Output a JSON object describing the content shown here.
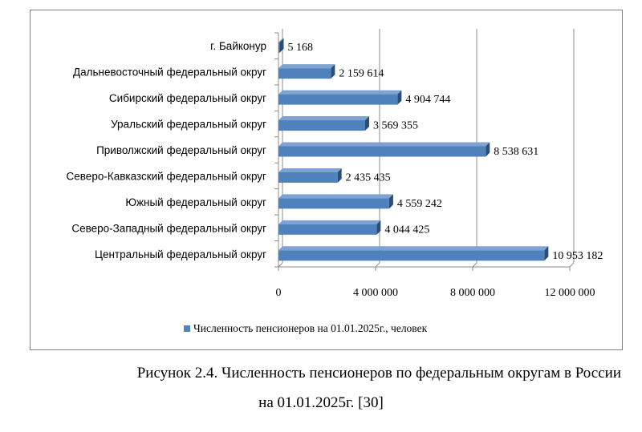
{
  "chart_data": {
    "type": "bar",
    "orientation": "horizontal",
    "categories": [
      "г. Байконур",
      "Дальневосточный федеральный округ",
      "Сибирский федеральный округ",
      "Уральский федеральный округ",
      "Приволжский федеральный округ",
      "Северо-Кавказский федеральный округ",
      "Южный федеральный округ",
      "Северо-Западный федеральный округ",
      "Центральный федеральный округ"
    ],
    "series": [
      {
        "name": "Численность пенсионеров на 01.01.2025г., человек",
        "values": [
          5168,
          2159614,
          4904744,
          3569355,
          8538631,
          2435435,
          4559242,
          4044425,
          10953182
        ],
        "value_labels": [
          "5 168",
          "2 159 614",
          "4 904 744",
          "3 569 355",
          "8 538 631",
          "2 435 435",
          "4 559 242",
          "4 044 425",
          "10 953 182"
        ]
      }
    ],
    "xlim": [
      0,
      12000000
    ],
    "xticks": [
      0,
      4000000,
      8000000,
      12000000
    ],
    "xtick_labels": [
      "0",
      "4 000 000",
      "8 000 000",
      "12 000 000"
    ],
    "grid": "vertical",
    "legend_position": "bottom",
    "bar_color": "#4f81bd",
    "title": "",
    "xlabel": "",
    "ylabel": ""
  },
  "caption": {
    "line1": "Рисунок 2.4. Численность пенсионеров по федеральным округам в России",
    "line2": "на 01.01.2025г. [30]"
  }
}
